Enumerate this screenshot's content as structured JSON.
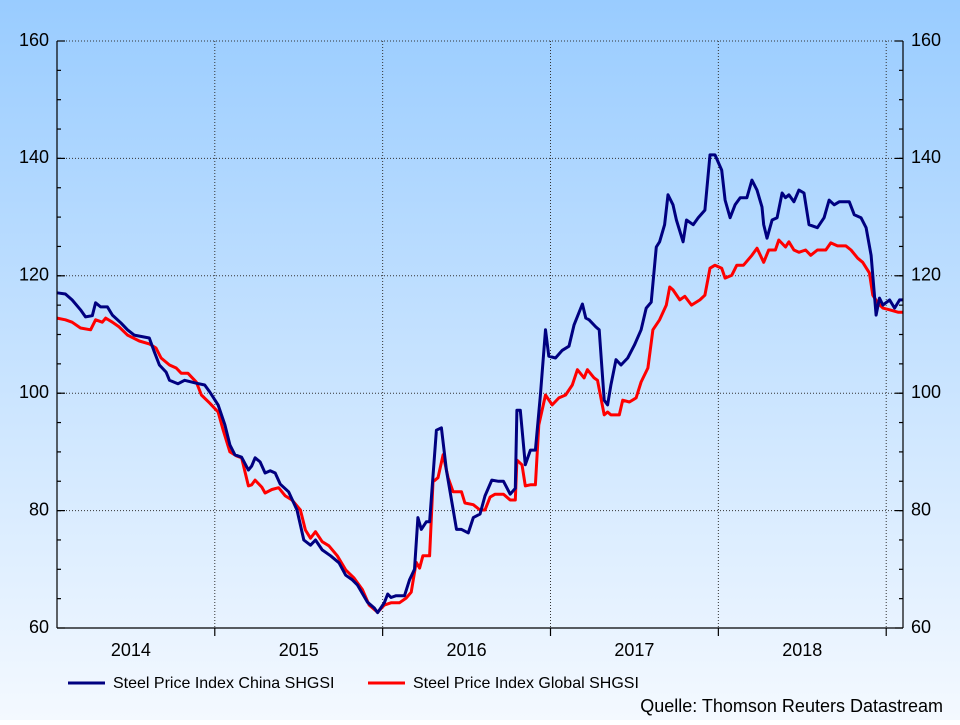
{
  "chart_data": {
    "type": "line",
    "xlim": [
      2014.06,
      2019.1
    ],
    "xticks": [
      {
        "value": 2014.5,
        "label": "2014"
      },
      {
        "value": 2015.5,
        "label": "2015"
      },
      {
        "value": 2016.5,
        "label": "2016"
      },
      {
        "value": 2017.5,
        "label": "2017"
      },
      {
        "value": 2018.5,
        "label": "2018"
      }
    ],
    "xgrid": [
      2015,
      2016,
      2017,
      2018,
      2019
    ],
    "ylim": [
      60,
      160
    ],
    "yticks": [
      60,
      80,
      100,
      120,
      140,
      160
    ],
    "y2lim": [
      60,
      160
    ],
    "y2ticks": [
      60,
      80,
      100,
      120,
      140,
      160
    ],
    "grid": true,
    "source": "Quelle: Thomson Reuters Datastream",
    "series": [
      {
        "name": "Steel Price Index China SHGSI",
        "color": "#000080",
        "x": [
          2014.06,
          2014.11,
          2014.15,
          2014.2,
          2014.23,
          2014.27,
          2014.29,
          2014.32,
          2014.36,
          2014.39,
          2014.44,
          2014.48,
          2014.52,
          2014.61,
          2014.64,
          2014.67,
          2014.71,
          2014.73,
          2014.78,
          2014.82,
          2014.89,
          2014.94,
          2014.97,
          2015.02,
          2015.06,
          2015.09,
          2015.12,
          2015.16,
          2015.2,
          2015.22,
          2015.24,
          2015.27,
          2015.3,
          2015.33,
          2015.36,
          2015.39,
          2015.44,
          2015.49,
          2015.53,
          2015.57,
          2015.6,
          2015.64,
          2015.69,
          2015.74,
          2015.78,
          2015.82,
          2015.85,
          2015.91,
          2015.95,
          2015.97,
          2016.01,
          2016.03,
          2016.05,
          2016.08,
          2016.13,
          2016.16,
          2016.19,
          2016.21,
          2016.23,
          2016.26,
          2016.28,
          2016.32,
          2016.35,
          2016.38,
          2016.41,
          2016.44,
          2016.47,
          2016.51,
          2016.54,
          2016.58,
          2016.61,
          2016.65,
          2016.69,
          2016.72,
          2016.76,
          2016.79,
          2016.8,
          2016.82,
          2016.85,
          2016.88,
          2016.91,
          2016.94,
          2016.97,
          2016.99,
          2017.03,
          2017.07,
          2017.11,
          2017.14,
          2017.19,
          2017.21,
          2017.23,
          2017.27,
          2017.29,
          2017.32,
          2017.34,
          2017.36,
          2017.39,
          2017.42,
          2017.46,
          2017.5,
          2017.54,
          2017.57,
          2017.6,
          2017.63,
          2017.65,
          2017.68,
          2017.7,
          2017.73,
          2017.75,
          2017.79,
          2017.81,
          2017.85,
          2017.88,
          2017.92,
          2017.95,
          2017.98,
          2018.02,
          2018.04,
          2018.07,
          2018.1,
          2018.13,
          2018.17,
          2018.2,
          2018.23,
          2018.26,
          2018.27,
          2018.29,
          2018.32,
          2018.35,
          2018.38,
          2018.4,
          2018.42,
          2018.45,
          2018.48,
          2018.51,
          2018.54,
          2018.59,
          2018.63,
          2018.66,
          2018.69,
          2018.72,
          2018.78,
          2018.81,
          2018.85,
          2018.88,
          2018.91,
          2018.94,
          2018.96,
          2018.98,
          2019.02,
          2019.05,
          2019.08,
          2019.1
        ],
        "values": [
          117.1,
          116.9,
          115.9,
          114.2,
          113,
          113.2,
          115.4,
          114.7,
          114.7,
          113.3,
          112,
          110.8,
          109.9,
          109.4,
          107,
          104.8,
          103.6,
          102.2,
          101.6,
          102.2,
          101.7,
          101.4,
          100.2,
          98,
          94.6,
          91.2,
          89.5,
          89.1,
          86.9,
          87.6,
          89,
          88.3,
          86.4,
          86.8,
          86.4,
          84.5,
          83.2,
          80.1,
          75,
          74.1,
          75,
          73.3,
          72.3,
          71.1,
          69,
          68.2,
          67.3,
          64.4,
          63.4,
          62.6,
          64.3,
          65.8,
          65.2,
          65.5,
          65.5,
          68.2,
          70,
          78.8,
          76.8,
          78.1,
          78.1,
          93.7,
          94.1,
          86.9,
          81.8,
          76.8,
          76.8,
          76.2,
          78.8,
          79.4,
          82.5,
          85.2,
          85,
          85,
          82.8,
          83.8,
          97.1,
          97.1,
          87.8,
          90.3,
          90.3,
          99.7,
          110.8,
          106.3,
          106,
          107.3,
          108,
          111.6,
          115.2,
          112.8,
          112.5,
          111.3,
          110.8,
          98.8,
          98,
          101.4,
          105.7,
          104.8,
          106,
          108.2,
          110.8,
          114.5,
          115.5,
          124.9,
          125.8,
          128.7,
          133.8,
          132.1,
          129.5,
          125.8,
          129.5,
          128.7,
          129.9,
          131.2,
          140.6,
          140.6,
          138,
          132.9,
          129.9,
          132.1,
          133.3,
          133.3,
          136.3,
          134.6,
          131.7,
          128.7,
          126.4,
          129.5,
          129.9,
          134.1,
          133.3,
          133.8,
          132.6,
          134.6,
          134.1,
          128.7,
          128.2,
          129.9,
          132.9,
          132.1,
          132.6,
          132.6,
          130.4,
          129.9,
          128.2,
          123.5,
          113.3,
          116.2,
          115,
          115.9,
          114.5,
          115.9,
          115.9
        ]
      },
      {
        "name": "Steel Price Index Global SHGSI",
        "color": "#ff0000",
        "x": [
          2014.06,
          2014.11,
          2014.15,
          2014.2,
          2014.26,
          2014.29,
          2014.33,
          2014.35,
          2014.39,
          2014.43,
          2014.48,
          2014.55,
          2014.61,
          2014.65,
          2014.68,
          2014.73,
          2014.77,
          2014.8,
          2014.84,
          2014.86,
          2014.89,
          2014.92,
          2014.97,
          2015.02,
          2015.05,
          2015.09,
          2015.13,
          2015.16,
          2015.2,
          2015.22,
          2015.24,
          2015.28,
          2015.3,
          2015.34,
          2015.38,
          2015.42,
          2015.46,
          2015.51,
          2015.54,
          2015.57,
          2015.6,
          2015.64,
          2015.68,
          2015.73,
          2015.78,
          2015.83,
          2015.88,
          2015.92,
          2015.97,
          2016.01,
          2016.05,
          2016.1,
          2016.14,
          2016.17,
          2016.2,
          2016.22,
          2016.24,
          2016.28,
          2016.3,
          2016.33,
          2016.36,
          2016.39,
          2016.42,
          2016.47,
          2016.49,
          2016.54,
          2016.58,
          2016.61,
          2016.64,
          2016.67,
          2016.72,
          2016.76,
          2016.79,
          2016.8,
          2016.83,
          2016.85,
          2016.88,
          2016.91,
          2016.93,
          2016.97,
          2017.01,
          2017.05,
          2017.09,
          2017.13,
          2017.16,
          2017.2,
          2017.22,
          2017.26,
          2017.28,
          2017.32,
          2017.34,
          2017.36,
          2017.41,
          2017.43,
          2017.47,
          2017.51,
          2017.54,
          2017.58,
          2017.61,
          2017.65,
          2017.69,
          2017.71,
          2017.73,
          2017.77,
          2017.8,
          2017.84,
          2017.89,
          2017.92,
          2017.95,
          2017.98,
          2018.02,
          2018.04,
          2018.08,
          2018.11,
          2018.15,
          2018.2,
          2018.23,
          2018.27,
          2018.3,
          2018.34,
          2018.36,
          2018.4,
          2018.42,
          2018.45,
          2018.48,
          2018.52,
          2018.55,
          2018.59,
          2018.64,
          2018.67,
          2018.71,
          2018.76,
          2018.79,
          2018.83,
          2018.86,
          2018.9,
          2018.92,
          2018.95,
          2018.98,
          2019.02,
          2019.07,
          2019.1
        ],
        "values": [
          112.8,
          112.5,
          112.1,
          111.1,
          110.8,
          112.5,
          112.1,
          112.8,
          112.1,
          111.3,
          109.9,
          108.9,
          108.4,
          107.7,
          106,
          104.8,
          104.3,
          103.4,
          103.4,
          102.8,
          101.9,
          99.7,
          98.3,
          96.8,
          93.7,
          90,
          89.3,
          89,
          84.2,
          84.4,
          85.2,
          84,
          83,
          83.6,
          83.9,
          82.5,
          81.8,
          80.1,
          76.7,
          75.3,
          76.4,
          74.7,
          74,
          72.3,
          69.9,
          68.5,
          66.5,
          63.9,
          62.7,
          63.9,
          64.3,
          64.3,
          65.1,
          66.1,
          71.2,
          70.2,
          72.3,
          72.3,
          84.9,
          85.6,
          89.5,
          85.6,
          83.2,
          83.2,
          81.3,
          81,
          80.1,
          80.1,
          82.3,
          82.8,
          82.8,
          81.8,
          81.8,
          88.6,
          87.8,
          84.2,
          84.4,
          84.4,
          94.6,
          99.7,
          98,
          99.2,
          99.7,
          101.4,
          104,
          102.6,
          104,
          102.6,
          102.2,
          96.3,
          96.8,
          96.3,
          96.3,
          98.8,
          98.5,
          99.2,
          101.9,
          104.3,
          110.8,
          112.5,
          115,
          118.1,
          117.6,
          115.9,
          116.5,
          115,
          115.9,
          116.7,
          121.3,
          121.8,
          121.3,
          119.6,
          120.1,
          121.8,
          121.8,
          123.5,
          124.7,
          122.3,
          124.4,
          124.4,
          126.1,
          124.9,
          125.8,
          124.4,
          124,
          124.4,
          123.5,
          124.4,
          124.4,
          125.6,
          125.1,
          125.1,
          124.4,
          123,
          122.3,
          120.5,
          116.7,
          115.4,
          114.5,
          114.2,
          113.8,
          113.8
        ]
      }
    ]
  }
}
